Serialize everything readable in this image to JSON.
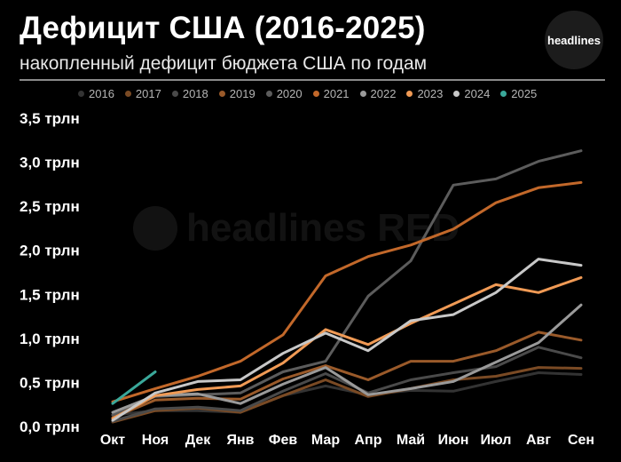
{
  "header": {
    "title": "Дефицит США (2016-2025)",
    "subtitle": "накопленный дефицит бюджета США по годам",
    "logo_text": "headlines"
  },
  "watermark": {
    "text": "headlines RED"
  },
  "chart_data": {
    "type": "line",
    "title": "Дефицит США (2016-2025)",
    "subtitle": "накопленный дефицит бюджета США по годам",
    "legend_position": "top",
    "ylim": [
      0,
      3.5
    ],
    "y_ticks": [
      {
        "value": 0.0,
        "label": "0,0 трлн"
      },
      {
        "value": 0.5,
        "label": "0,5 трлн"
      },
      {
        "value": 1.0,
        "label": "1,0 трлн"
      },
      {
        "value": 1.5,
        "label": "1,5 трлн"
      },
      {
        "value": 2.0,
        "label": "2,0 трлн"
      },
      {
        "value": 2.5,
        "label": "2,5 трлн"
      },
      {
        "value": 3.0,
        "label": "3,0 трлн"
      },
      {
        "value": 3.5,
        "label": "3,5 трлн"
      }
    ],
    "categories": [
      "Окт",
      "Ноя",
      "Дек",
      "Янв",
      "Фев",
      "Мар",
      "Апр",
      "Май",
      "Июн",
      "Июл",
      "Авг",
      "Сен"
    ],
    "series": [
      {
        "name": "2016",
        "color": "#333333",
        "values": [
          0.13,
          0.18,
          0.18,
          0.16,
          0.35,
          0.46,
          0.36,
          0.41,
          0.4,
          0.51,
          0.61,
          0.59
        ]
      },
      {
        "name": "2017",
        "color": "#7a4a24",
        "values": [
          0.05,
          0.18,
          0.21,
          0.16,
          0.35,
          0.53,
          0.34,
          0.43,
          0.53,
          0.57,
          0.67,
          0.66
        ]
      },
      {
        "name": "2018",
        "color": "#4a4a4a",
        "values": [
          0.06,
          0.2,
          0.22,
          0.18,
          0.4,
          0.6,
          0.38,
          0.53,
          0.61,
          0.68,
          0.9,
          0.78
        ]
      },
      {
        "name": "2019",
        "color": "#9a5a2a",
        "values": [
          0.1,
          0.3,
          0.32,
          0.31,
          0.54,
          0.69,
          0.53,
          0.74,
          0.74,
          0.86,
          1.07,
          0.98
        ]
      },
      {
        "name": "2020",
        "color": "#5c5c5c",
        "values": [
          0.13,
          0.34,
          0.36,
          0.38,
          0.62,
          0.74,
          1.48,
          1.88,
          2.74,
          2.81,
          3.01,
          3.13
        ]
      },
      {
        "name": "2021",
        "color": "#c2682a",
        "values": [
          0.28,
          0.43,
          0.57,
          0.74,
          1.04,
          1.71,
          1.93,
          2.06,
          2.24,
          2.54,
          2.71,
          2.77
        ]
      },
      {
        "name": "2022",
        "color": "#9a9a9a",
        "values": [
          0.16,
          0.35,
          0.37,
          0.26,
          0.48,
          0.67,
          0.36,
          0.43,
          0.51,
          0.73,
          0.95,
          1.38
        ]
      },
      {
        "name": "2023",
        "color": "#f09a55",
        "values": [
          0.09,
          0.35,
          0.42,
          0.46,
          0.72,
          1.1,
          0.93,
          1.17,
          1.39,
          1.61,
          1.52,
          1.69
        ]
      },
      {
        "name": "2024",
        "color": "#c8c8c8",
        "values": [
          0.07,
          0.38,
          0.51,
          0.53,
          0.83,
          1.06,
          0.86,
          1.2,
          1.27,
          1.52,
          1.9,
          1.83
        ]
      },
      {
        "name": "2025",
        "color": "#3aa89a",
        "values": [
          0.26,
          0.62,
          null,
          null,
          null,
          null,
          null,
          null,
          null,
          null,
          null,
          null
        ]
      }
    ]
  }
}
